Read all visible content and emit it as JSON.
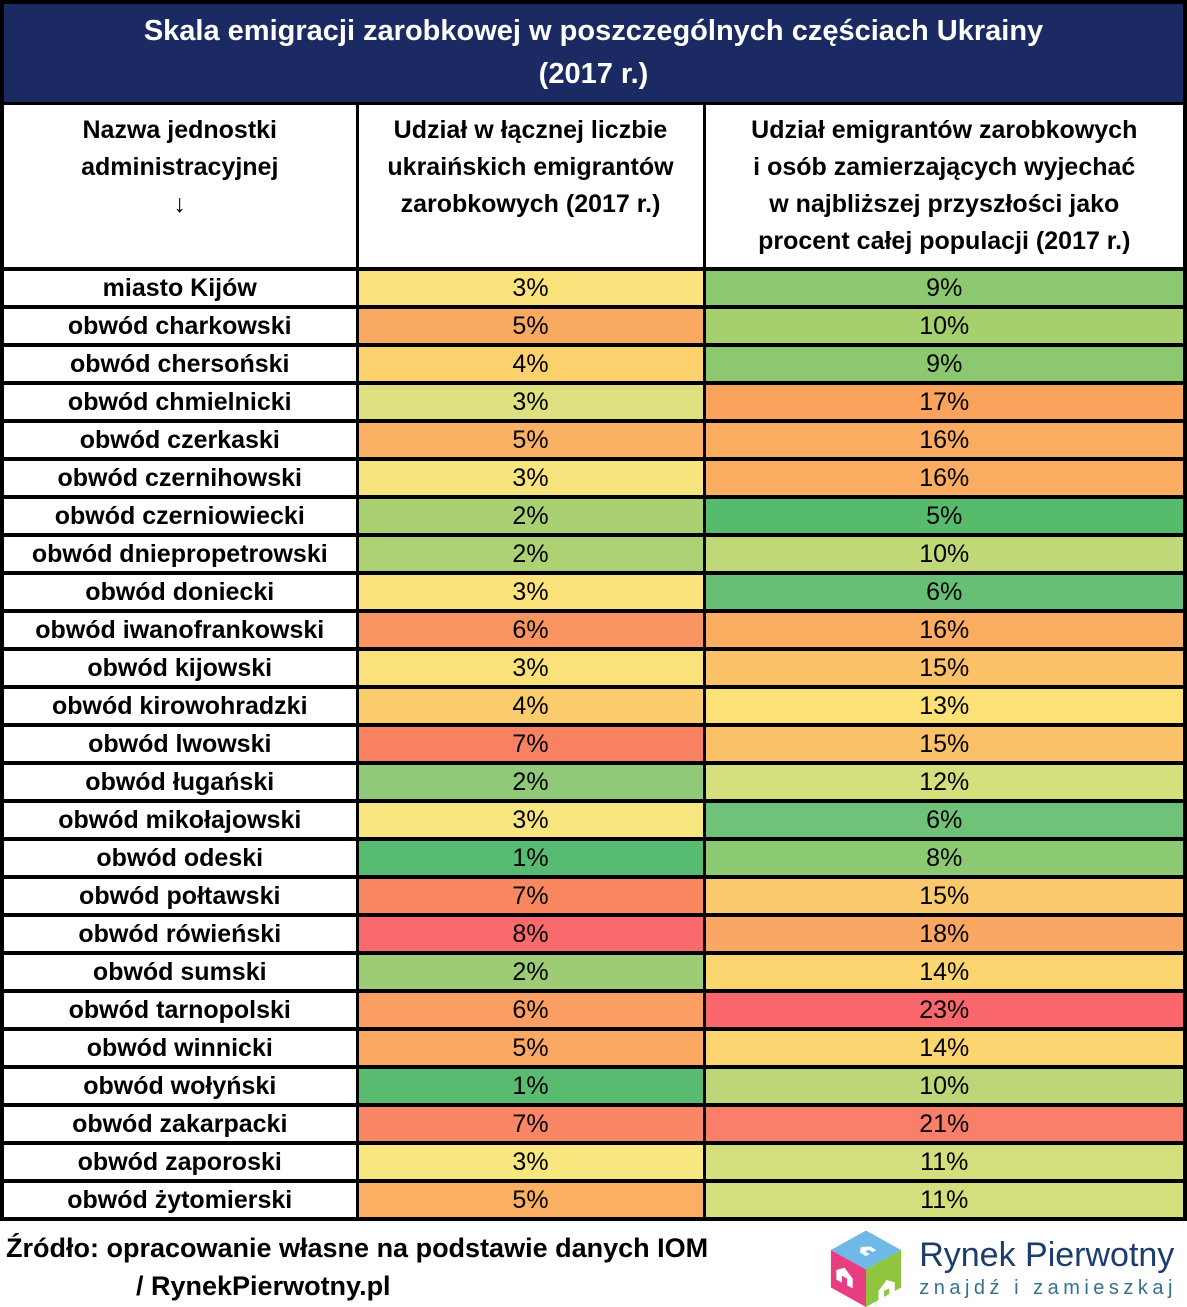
{
  "title": {
    "lines": [
      "Skala emigracji zarobkowej w poszczególnych częściach Ukrainy",
      "(2017 r.)"
    ]
  },
  "columns": [
    {
      "lines": [
        "Nazwa jednostki",
        "administracyjnej",
        "↓"
      ]
    },
    {
      "lines": [
        "Udział w łącznej liczbie",
        "ukraińskich emigrantów",
        "zarobkowych (2017 r.)"
      ]
    },
    {
      "lines": [
        "Udział emigrantów zarobkowych",
        "i osób zamierzających wyjechać",
        "w najbliższej przyszłości jako",
        "procent całej populacji (2017 r.)"
      ]
    }
  ],
  "rows": [
    {
      "name": "miasto Kijów",
      "share": {
        "value": "3%",
        "color": "#FAE37D"
      },
      "population": {
        "value": "9%",
        "color": "#8CC870"
      }
    },
    {
      "name": "obwód charkowski",
      "share": {
        "value": "5%",
        "color": "#F9A961"
      },
      "population": {
        "value": "10%",
        "color": "#A6CF6E"
      }
    },
    {
      "name": "obwód chersoński",
      "share": {
        "value": "4%",
        "color": "#FBD26E"
      },
      "population": {
        "value": "9%",
        "color": "#8CC870"
      }
    },
    {
      "name": "obwód chmielnicki",
      "share": {
        "value": "3%",
        "color": "#DFE181"
      },
      "population": {
        "value": "17%",
        "color": "#F9A35C"
      }
    },
    {
      "name": "obwód czerkaski",
      "share": {
        "value": "5%",
        "color": "#FAB164"
      },
      "population": {
        "value": "16%",
        "color": "#FAAC60"
      }
    },
    {
      "name": "obwód czernihowski",
      "share": {
        "value": "3%",
        "color": "#F8E47E"
      },
      "population": {
        "value": "16%",
        "color": "#FAAC60"
      }
    },
    {
      "name": "obwód czerniowiecki",
      "share": {
        "value": "2%",
        "color": "#A9D172"
      },
      "population": {
        "value": "5%",
        "color": "#57BB6C"
      }
    },
    {
      "name": "obwód dniepropetrowski",
      "share": {
        "value": "2%",
        "color": "#ACD273"
      },
      "population": {
        "value": "10%",
        "color": "#BFD878"
      }
    },
    {
      "name": "obwód doniecki",
      "share": {
        "value": "3%",
        "color": "#FBE27B"
      },
      "population": {
        "value": "6%",
        "color": "#66BF74"
      }
    },
    {
      "name": "obwód iwanofrankowski",
      "share": {
        "value": "6%",
        "color": "#F89362"
      },
      "population": {
        "value": "16%",
        "color": "#FAAC60"
      }
    },
    {
      "name": "obwód kijowski",
      "share": {
        "value": "3%",
        "color": "#FBE17A"
      },
      "population": {
        "value": "15%",
        "color": "#FBC168"
      }
    },
    {
      "name": "obwód kirowohradzki",
      "share": {
        "value": "4%",
        "color": "#FBCC6C"
      },
      "population": {
        "value": "13%",
        "color": "#FBE176"
      }
    },
    {
      "name": "obwód lwowski",
      "share": {
        "value": "7%",
        "color": "#F88162"
      },
      "population": {
        "value": "15%",
        "color": "#FBC168"
      }
    },
    {
      "name": "obwód ługański",
      "share": {
        "value": "2%",
        "color": "#90C977"
      },
      "population": {
        "value": "12%",
        "color": "#D6DF7D"
      }
    },
    {
      "name": "obwód mikołajowski",
      "share": {
        "value": "3%",
        "color": "#F7E57F"
      },
      "population": {
        "value": "6%",
        "color": "#6FC277"
      }
    },
    {
      "name": "obwód odeski",
      "share": {
        "value": "1%",
        "color": "#57BB71"
      },
      "population": {
        "value": "8%",
        "color": "#8CC973"
      }
    },
    {
      "name": "obwód połtawski",
      "share": {
        "value": "7%",
        "color": "#F9875F"
      },
      "population": {
        "value": "15%",
        "color": "#FBC96D"
      }
    },
    {
      "name": "obwód rówieński",
      "share": {
        "value": "8%",
        "color": "#F96A6D"
      },
      "population": {
        "value": "18%",
        "color": "#FAA763"
      }
    },
    {
      "name": "obwód sumski",
      "share": {
        "value": "2%",
        "color": "#9DCC74"
      },
      "population": {
        "value": "14%",
        "color": "#FBD56F"
      }
    },
    {
      "name": "obwód tarnopolski",
      "share": {
        "value": "6%",
        "color": "#FA9E63"
      },
      "population": {
        "value": "23%",
        "color": "#F9676C"
      }
    },
    {
      "name": "obwód winnicki",
      "share": {
        "value": "5%",
        "color": "#FAA862"
      },
      "population": {
        "value": "14%",
        "color": "#FBD56F"
      }
    },
    {
      "name": "obwód wołyński",
      "share": {
        "value": "1%",
        "color": "#5ABB70"
      },
      "population": {
        "value": "10%",
        "color": "#BCD678"
      }
    },
    {
      "name": "obwód zakarpacki",
      "share": {
        "value": "7%",
        "color": "#FA8666"
      },
      "population": {
        "value": "21%",
        "color": "#F97F6A"
      }
    },
    {
      "name": "obwód zaporoski",
      "share": {
        "value": "3%",
        "color": "#F8E67F"
      },
      "population": {
        "value": "11%",
        "color": "#D5DE7D"
      }
    },
    {
      "name": "obwód żytomierski",
      "share": {
        "value": "5%",
        "color": "#FBAF62"
      },
      "population": {
        "value": "11%",
        "color": "#D5DE7D"
      }
    }
  ],
  "footer": {
    "source_line1": "Źródło: opracowanie własne na podstawie danych IOM",
    "source_line2": "/ RynekPierwotny.pl",
    "logo": {
      "brand": "Rynek Pierwotny",
      "tagline": "znajdź i zamieszkaj"
    }
  },
  "colors": {
    "title_bg": "#1B2A63",
    "title_text": "#FFFFFF",
    "border": "#000000",
    "brand_text": "#1D3C6E",
    "tagline_text": "#35708E",
    "cube_top": "#6FB9E9",
    "cube_left": "#E83D80",
    "cube_right": "#90C53F"
  },
  "chart_data": {
    "type": "table",
    "title": "Skala emigracji zarobkowej w poszczególnych częściach Ukrainy (2017 r.)",
    "categories": [
      "miasto Kijów",
      "obwód charkowski",
      "obwód chersoński",
      "obwód chmielnicki",
      "obwód czerkaski",
      "obwód czernihowski",
      "obwód czerniowiecki",
      "obwód dniepropetrowski",
      "obwód doniecki",
      "obwód iwanofrankowski",
      "obwód kijowski",
      "obwód kirowohradzki",
      "obwód lwowski",
      "obwód ługański",
      "obwód mikołajowski",
      "obwód odeski",
      "obwód połtawski",
      "obwód rówieński",
      "obwód sumski",
      "obwód tarnopolski",
      "obwód winnicki",
      "obwód wołyński",
      "obwód zakarpacki",
      "obwód zaporoski",
      "obwód żytomierski"
    ],
    "series": [
      {
        "name": "Udział w łącznej liczbie ukraińskich emigrantów zarobkowych (2017 r.)",
        "unit": "%",
        "values": [
          3,
          5,
          4,
          3,
          5,
          3,
          2,
          2,
          3,
          6,
          3,
          4,
          7,
          2,
          3,
          1,
          7,
          8,
          2,
          6,
          5,
          1,
          7,
          3,
          5
        ]
      },
      {
        "name": "Udział emigrantów zarobkowych i osób zamierzających wyjechać w najbliższej przyszłości jako procent całej populacji (2017 r.)",
        "unit": "%",
        "values": [
          9,
          10,
          9,
          17,
          16,
          16,
          5,
          10,
          6,
          16,
          15,
          13,
          15,
          12,
          6,
          8,
          15,
          18,
          14,
          23,
          14,
          10,
          21,
          11,
          11
        ]
      }
    ],
    "style": "heatmap: green (low) → yellow → red (high), per column"
  }
}
